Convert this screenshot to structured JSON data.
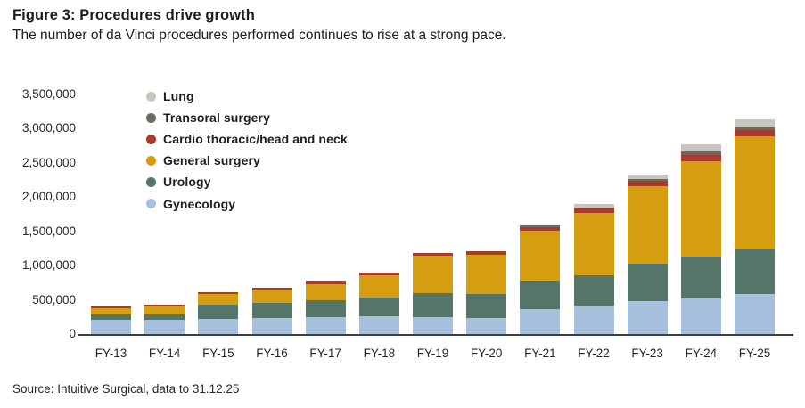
{
  "header": {
    "title": "Figure 3: Procedures drive growth",
    "subtitle": "The number of da Vinci procedures performed continues to rise at a strong pace."
  },
  "footer": {
    "source": "Source: Intuitive Surgical, data to 31.12.25"
  },
  "chart_data": {
    "type": "bar",
    "stacked": true,
    "title": "Figure 3: Procedures drive growth",
    "subtitle": "The number of da Vinci procedures performed continues to rise at a strong pace.",
    "source": "Source: Intuitive Surgical, data to 31.12.25",
    "xlabel": "",
    "ylabel": "",
    "grid": false,
    "legend_position": "inside-top-left",
    "legend_order_top_to_bottom": [
      "Lung",
      "Transoral surgery",
      "Cardio thoracic/head and neck",
      "General surgery",
      "Urology",
      "Gynecology"
    ],
    "ylim": [
      0,
      3500000
    ],
    "y_tick_step": 500000,
    "y_tick_labels": [
      "0",
      "500,000",
      "1,000,000",
      "1,500,000",
      "2,000,000",
      "2,500,000",
      "3,000,000",
      "3,500,000"
    ],
    "axis_color": "#3d3d3d",
    "categories": [
      "FY-13",
      "FY-14",
      "FY-15",
      "FY-16",
      "FY-17",
      "FY-18",
      "FY-19",
      "FY-20",
      "FY-21",
      "FY-22",
      "FY-23",
      "FY-24",
      "FY-25"
    ],
    "series": [
      {
        "name": "Gynecology",
        "color": "#a6c0dd",
        "values": [
          210000,
          205000,
          220000,
          230000,
          250000,
          255000,
          250000,
          240000,
          360000,
          415000,
          480000,
          520000,
          590000
        ]
      },
      {
        "name": "Urology",
        "color": "#567569",
        "values": [
          80000,
          80000,
          210000,
          230000,
          250000,
          280000,
          350000,
          350000,
          425000,
          445000,
          550000,
          610000,
          645000
        ]
      },
      {
        "name": "General surgery",
        "color": "#d49e10",
        "values": [
          85000,
          115000,
          150000,
          175000,
          235000,
          325000,
          540000,
          570000,
          730000,
          905000,
          1135000,
          1400000,
          1650000
        ]
      },
      {
        "name": "Cardio thoracic/head and neck",
        "color": "#a83b2a",
        "values": [
          30000,
          30000,
          30000,
          40000,
          40000,
          40000,
          50000,
          55000,
          45000,
          65000,
          70000,
          90000,
          90000
        ]
      },
      {
        "name": "Transoral surgery",
        "color": "#6d695e",
        "values": [
          0,
          0,
          0,
          0,
          0,
          0,
          0,
          0,
          30000,
          20000,
          25000,
          45000,
          40000
        ]
      },
      {
        "name": "Lung",
        "color": "#c9c5c0",
        "values": [
          0,
          0,
          0,
          0,
          0,
          0,
          0,
          0,
          0,
          50000,
          70000,
          105000,
          120000
        ]
      }
    ],
    "totals": [
      405000,
      430000,
      610000,
      675000,
      775000,
      900000,
      1190000,
      1215000,
      1590000,
      1900000,
      2330000,
      2770000,
      3135000
    ]
  }
}
